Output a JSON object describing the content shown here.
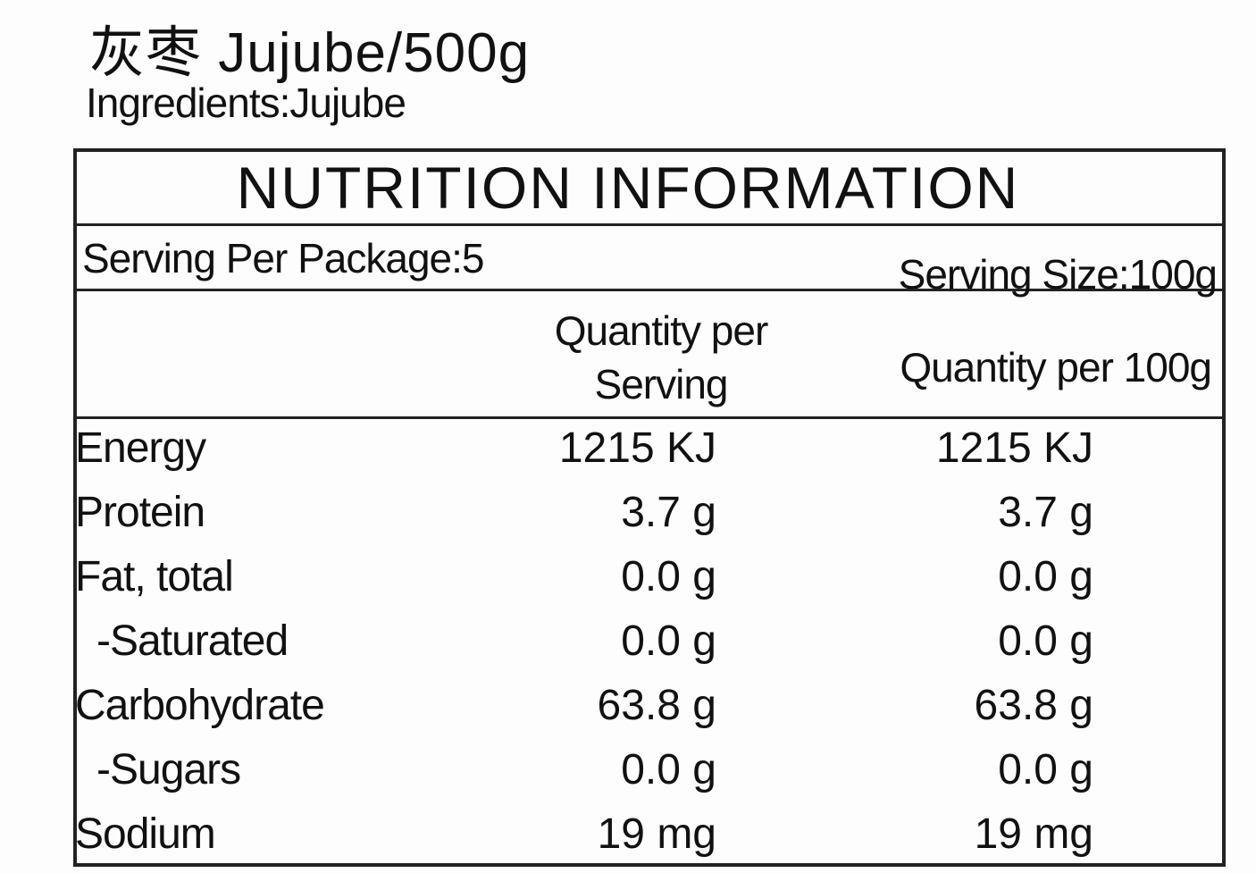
{
  "header": {
    "title": "灰枣 Jujube/500g",
    "ingredients": "Ingredients:Jujube"
  },
  "table": {
    "title": "NUTRITION INFORMATION",
    "servings_per_package": "Serving Per Package:5",
    "serving_size": "Serving Size:100g",
    "columns": [
      "Quantity per Serving",
      "Quantity per 100g"
    ],
    "rows": [
      [
        "Energy",
        "1215 KJ",
        "1215 KJ"
      ],
      [
        "Protein",
        "3.7 g",
        "3.7 g"
      ],
      [
        "Fat, total",
        "0.0 g",
        "0.0 g"
      ],
      [
        "-Saturated",
        "0.0 g",
        "0.0 g"
      ],
      [
        "Carbohydrate",
        "63.8 g",
        "63.8 g"
      ],
      [
        "-Sugars",
        "0.0 g",
        "0.0 g"
      ],
      [
        "Sodium",
        "19 mg",
        "19 mg"
      ]
    ]
  }
}
